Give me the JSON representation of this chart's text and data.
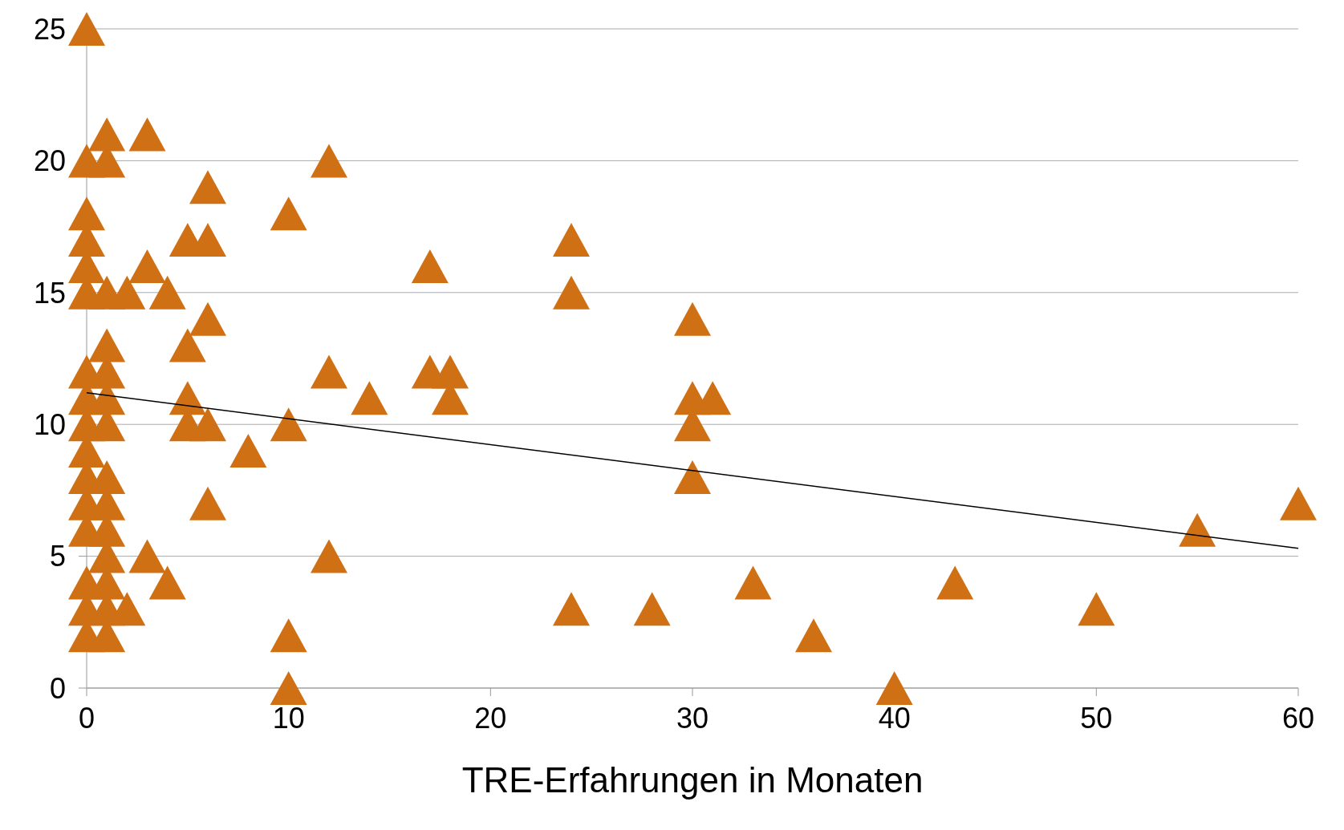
{
  "chart_data": {
    "type": "scatter",
    "xlabel": "TRE-Erfahrungen in Monaten",
    "xlim": [
      0,
      60
    ],
    "xticks": [
      0,
      10,
      20,
      30,
      40,
      50,
      60
    ],
    "ylim": [
      0,
      25
    ],
    "yticks": [
      0,
      5,
      10,
      15,
      20,
      25
    ],
    "grid": "y",
    "marker": "triangle",
    "series": [
      {
        "type": "scatter",
        "color": "#d07014",
        "x": [
          0,
          0,
          0,
          0,
          0,
          0,
          0,
          0,
          0,
          0,
          0,
          0,
          0,
          0,
          0,
          0,
          1,
          1,
          1,
          1,
          1,
          1,
          1,
          1,
          1,
          1,
          1,
          1,
          1,
          1,
          2,
          2,
          3,
          3,
          3,
          4,
          4,
          5,
          5,
          5,
          5,
          6,
          6,
          6,
          6,
          6,
          8,
          10,
          10,
          10,
          10,
          12,
          12,
          12,
          14,
          17,
          17,
          18,
          18,
          24,
          24,
          24,
          28,
          30,
          30,
          30,
          30,
          31,
          33,
          36,
          40,
          43,
          50,
          55,
          60
        ],
        "values": [
          25,
          20,
          18,
          17,
          16,
          15,
          12,
          11,
          10,
          9,
          8,
          7,
          6,
          4,
          3,
          2,
          21,
          20,
          15,
          13,
          12,
          11,
          10,
          8,
          7,
          6,
          5,
          4,
          3,
          2,
          15,
          3,
          21,
          16,
          5,
          15,
          4,
          17,
          13,
          11,
          10,
          19,
          17,
          14,
          10,
          7,
          9,
          18,
          10,
          2,
          0,
          20,
          12,
          5,
          11,
          16,
          12,
          12,
          11,
          17,
          15,
          3,
          3,
          14,
          11,
          10,
          8,
          11,
          4,
          2,
          0,
          4,
          3,
          6,
          7
        ]
      },
      {
        "type": "line",
        "color": "#000000",
        "marker": "none",
        "x": [
          0,
          60
        ],
        "values": [
          11.2,
          5.3
        ]
      }
    ]
  }
}
